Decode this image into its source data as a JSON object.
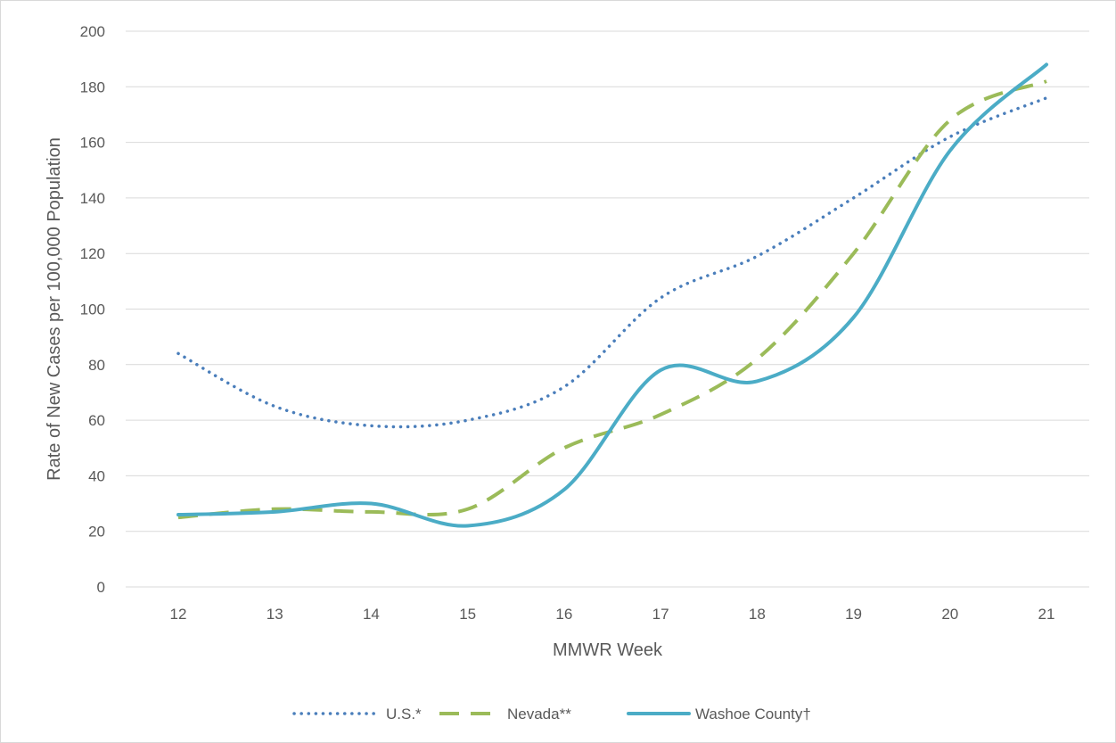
{
  "chart_data": {
    "type": "line",
    "xlabel": "MMWR Week",
    "ylabel": "Rate of New Cases per 100,000 Population",
    "x": [
      12,
      13,
      14,
      15,
      16,
      17,
      18,
      19,
      20,
      21
    ],
    "xlim": [
      12,
      21
    ],
    "ylim": [
      0,
      200
    ],
    "yticks": [
      0,
      20,
      40,
      60,
      80,
      100,
      120,
      140,
      160,
      180,
      200
    ],
    "grid": "horizontal",
    "legend_position": "bottom",
    "series": [
      {
        "name": "U.S.*",
        "color": "#4A7EBB",
        "style": "dotted",
        "values": [
          84,
          65,
          58,
          60,
          72,
          104,
          119,
          140,
          162,
          176
        ]
      },
      {
        "name": "Nevada**",
        "color": "#9BBB59",
        "style": "dashed",
        "values": [
          25,
          28,
          27,
          28,
          50,
          62,
          82,
          120,
          168,
          182
        ]
      },
      {
        "name": "Washoe County†",
        "color": "#4BACC6",
        "style": "solid",
        "values": [
          26,
          27,
          30,
          22,
          35,
          78,
          74,
          97,
          157,
          188
        ]
      }
    ]
  }
}
